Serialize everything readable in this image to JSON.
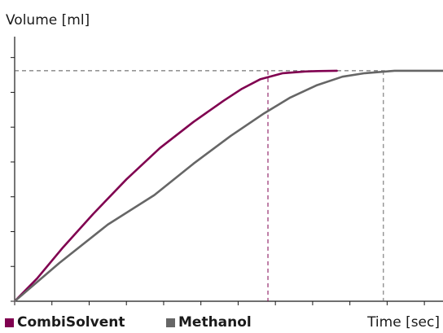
{
  "chart_data": {
    "type": "line",
    "ylabel": "Volume [ml]",
    "xlabel": "Time [sec]",
    "grid": false,
    "legend_position": "bottom-left",
    "series": [
      {
        "name": "CombiSolvent",
        "color": "#800050",
        "x": [
          0,
          0.6,
          1.3,
          2.1,
          3.0,
          3.9,
          4.8,
          5.6,
          6.1,
          6.6,
          7.2,
          7.8,
          8.15,
          8.65
        ],
        "y": [
          0,
          0.65,
          1.55,
          2.5,
          3.5,
          4.4,
          5.15,
          5.75,
          6.1,
          6.38,
          6.55,
          6.6,
          6.61,
          6.62
        ]
      },
      {
        "name": "Methanol",
        "color": "#666666",
        "x": [
          0,
          1.2,
          2.5,
          3.75,
          4.8,
          5.8,
          6.7,
          7.4,
          8.1,
          8.8,
          9.4,
          10.2,
          11.0,
          11.5
        ],
        "y": [
          0,
          1.1,
          2.2,
          3.05,
          3.95,
          4.75,
          5.4,
          5.85,
          6.2,
          6.45,
          6.55,
          6.62,
          6.62,
          6.62
        ]
      }
    ],
    "reference_lines": {
      "horizontal": 6.62,
      "vertical": [
        6.8,
        9.9
      ]
    },
    "xlim": [
      0,
      11.5
    ],
    "ylim": [
      0,
      7.6
    ],
    "xticks": [
      0,
      1,
      2,
      3,
      4,
      5,
      6,
      7,
      8,
      9,
      10,
      11
    ],
    "yticks": [
      0,
      1,
      2,
      3,
      4,
      5,
      6,
      7
    ]
  }
}
